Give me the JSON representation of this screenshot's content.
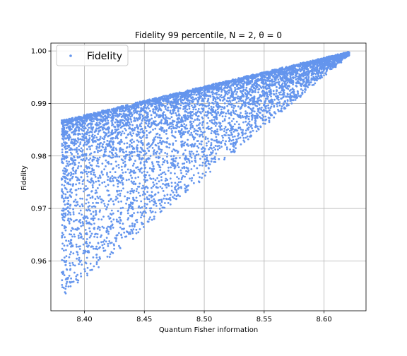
{
  "chart_data": {
    "type": "scatter",
    "title": "Fidelity 99 percentile, N = 2, θ = 0",
    "xlabel": "Quantum Fisher information",
    "ylabel": "Fidelity",
    "xlim": [
      8.372,
      8.635
    ],
    "ylim": [
      0.9505,
      1.0015
    ],
    "xticks": [
      8.4,
      8.45,
      8.5,
      8.55,
      8.6
    ],
    "xtick_labels": [
      "8.40",
      "8.45",
      "8.50",
      "8.55",
      "8.60"
    ],
    "yticks": [
      0.96,
      0.97,
      0.98,
      0.99,
      1.0
    ],
    "ytick_labels": [
      "0.96",
      "0.97",
      "0.98",
      "0.99",
      "1.00"
    ],
    "grid": true,
    "legend_position": "upper-left",
    "series": [
      {
        "name": "Fidelity",
        "color": "#6495ed",
        "marker": "point",
        "distribution": {
          "upper_edge": [
            [
              8.381,
              0.9868
            ],
            [
              8.621,
              0.9999
            ]
          ],
          "lower_edge": [
            [
              8.381,
              0.953
            ],
            [
              8.621,
              0.9995
            ]
          ],
          "approx_count": 6000
        }
      }
    ]
  }
}
